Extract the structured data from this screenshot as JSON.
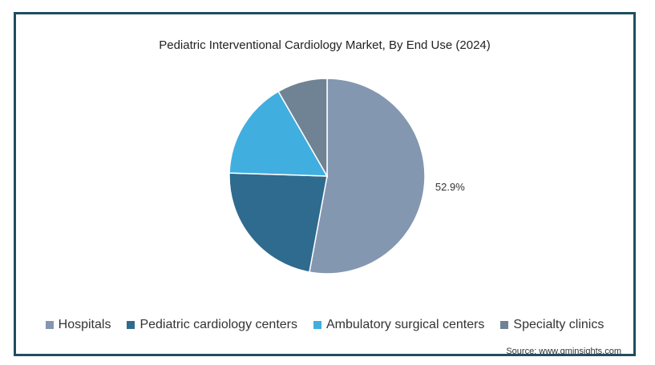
{
  "chart_data": {
    "type": "pie",
    "title": "Pediatric Interventional Cardiology Market, By End Use (2024)",
    "categories": [
      "Hospitals",
      "Pediatric cardiology centers",
      "Ambulatory surgical centers",
      "Specialty clinics"
    ],
    "values": [
      52.9,
      22.6,
      16.2,
      8.3
    ],
    "data_labels": [
      "52.9%",
      "",
      "",
      ""
    ],
    "colors": [
      "#8497b0",
      "#2e6b8e",
      "#41aee0",
      "#6f8394"
    ],
    "legend_position": "bottom",
    "start_angle": "12 o'clock",
    "direction": "clockwise"
  },
  "source": "Source: www.gminsights.com"
}
